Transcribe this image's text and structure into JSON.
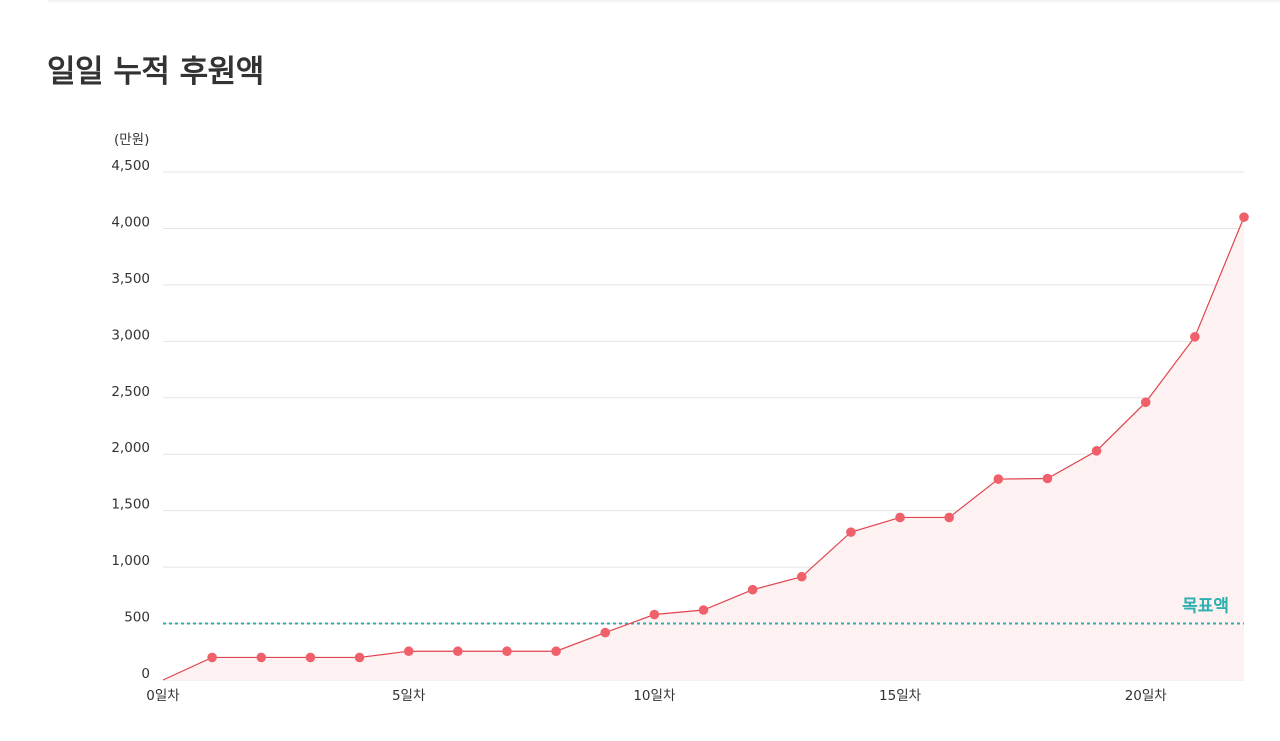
{
  "page": {
    "title": "일일 누적 후원액"
  },
  "chart_data": {
    "type": "area",
    "title": "일일 누적 후원액",
    "y_unit_label": "(만원)",
    "xlim": [
      0,
      22
    ],
    "ylim": [
      0,
      4500
    ],
    "y_ticks": [
      0,
      500,
      1000,
      1500,
      2000,
      2500,
      3000,
      3500,
      4000,
      4500
    ],
    "y_tick_labels": [
      "0",
      "500",
      "1,000",
      "1,500",
      "2,000",
      "2,500",
      "3,000",
      "3,500",
      "4,000",
      "4,500"
    ],
    "x_ticks": [
      0,
      5,
      10,
      15,
      20
    ],
    "x_tick_labels": [
      "0일차",
      "5일차",
      "10일차",
      "15일차",
      "20일차"
    ],
    "grid": true,
    "series": [
      {
        "x": [
          0,
          1,
          2,
          3,
          4,
          5,
          6,
          7,
          8,
          9,
          10,
          11,
          12,
          13,
          14,
          15,
          16,
          17,
          18,
          19,
          20,
          21,
          22
        ],
        "values": [
          0,
          200,
          200,
          200,
          200,
          255,
          255,
          255,
          255,
          420,
          580,
          620,
          800,
          915,
          1310,
          1440,
          1440,
          1780,
          1785,
          2030,
          2460,
          3040,
          4100
        ]
      }
    ],
    "target": {
      "label": "목표액",
      "value": 500
    },
    "colors": {
      "line": "#e0454f",
      "point": "#f0606a",
      "area_fill": "#fdf1f2",
      "target_line": "#2bb0ad",
      "grid": "#e4e4e4"
    }
  }
}
